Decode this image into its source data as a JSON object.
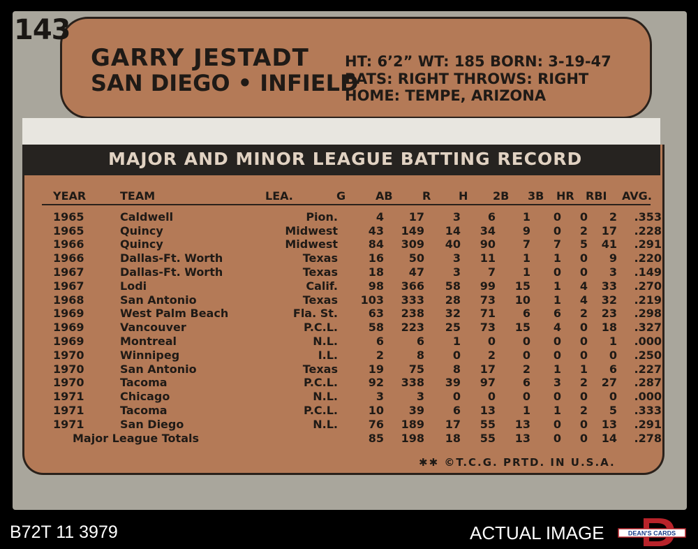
{
  "card": {
    "number": "143",
    "player_name": "GARRY JESTADT",
    "team_position": "SAN DIEGO • INFIELD",
    "bio": {
      "line1": "HT: 6’2”   WT: 185  BORN: 3-19-47",
      "line2": "BATS: RIGHT        THROWS: RIGHT",
      "line3": "HOME: TEMPE, ARIZONA"
    },
    "record_title": "MAJOR AND MINOR LEAGUE BATTING RECORD",
    "columns": [
      "YEAR",
      "TEAM",
      "LEA.",
      "G",
      "AB",
      "R",
      "H",
      "2B",
      "3B",
      "HR",
      "RBI",
      "AVG."
    ],
    "rows": [
      [
        "1965",
        "Caldwell",
        "Pion.",
        "4",
        "17",
        "3",
        "6",
        "1",
        "0",
        "0",
        "2",
        ".353"
      ],
      [
        "1965",
        "Quincy",
        "Midwest",
        "43",
        "149",
        "14",
        "34",
        "9",
        "0",
        "2",
        "17",
        ".228"
      ],
      [
        "1966",
        "Quincy",
        "Midwest",
        "84",
        "309",
        "40",
        "90",
        "7",
        "7",
        "5",
        "41",
        ".291"
      ],
      [
        "1966",
        "Dallas-Ft. Worth",
        "Texas",
        "16",
        "50",
        "3",
        "11",
        "1",
        "1",
        "0",
        "9",
        ".220"
      ],
      [
        "1967",
        "Dallas-Ft. Worth",
        "Texas",
        "18",
        "47",
        "3",
        "7",
        "1",
        "0",
        "0",
        "3",
        ".149"
      ],
      [
        "1967",
        "Lodi",
        "Calif.",
        "98",
        "366",
        "58",
        "99",
        "15",
        "1",
        "4",
        "33",
        ".270"
      ],
      [
        "1968",
        "San Antonio",
        "Texas",
        "103",
        "333",
        "28",
        "73",
        "10",
        "1",
        "4",
        "32",
        ".219"
      ],
      [
        "1969",
        "West Palm Beach",
        "Fla. St.",
        "63",
        "238",
        "32",
        "71",
        "6",
        "6",
        "2",
        "23",
        ".298"
      ],
      [
        "1969",
        "Vancouver",
        "P.C.L.",
        "58",
        "223",
        "25",
        "73",
        "15",
        "4",
        "0",
        "18",
        ".327"
      ],
      [
        "1969",
        "Montreal",
        "N.L.",
        "6",
        "6",
        "1",
        "0",
        "0",
        "0",
        "0",
        "1",
        ".000"
      ],
      [
        "1970",
        "Winnipeg",
        "I.L.",
        "2",
        "8",
        "0",
        "2",
        "0",
        "0",
        "0",
        "0",
        ".250"
      ],
      [
        "1970",
        "San Antonio",
        "Texas",
        "19",
        "75",
        "8",
        "17",
        "2",
        "1",
        "1",
        "6",
        ".227"
      ],
      [
        "1970",
        "Tacoma",
        "P.C.L.",
        "92",
        "338",
        "39",
        "97",
        "6",
        "3",
        "2",
        "27",
        ".287"
      ],
      [
        "1971",
        "Chicago",
        "N.L.",
        "3",
        "3",
        "0",
        "0",
        "0",
        "0",
        "0",
        "0",
        ".000"
      ],
      [
        "1971",
        "Tacoma",
        "P.C.L.",
        "10",
        "39",
        "6",
        "13",
        "1",
        "1",
        "2",
        "5",
        ".333"
      ],
      [
        "1971",
        "San Diego",
        "N.L.",
        "76",
        "189",
        "17",
        "55",
        "13",
        "0",
        "0",
        "13",
        ".291"
      ]
    ],
    "totals_label": "Major League Totals",
    "totals": [
      "85",
      "198",
      "18",
      "55",
      "13",
      "0",
      "0",
      "14",
      ".278"
    ],
    "copyright": "✱✱ ©T.C.G. PRTD. IN U.S.A."
  },
  "overlay": {
    "sku": "B72T 11 3979",
    "actual_image": "ACTUAL IMAGE",
    "logo_text": "DEAN'S CARDS"
  },
  "colors": {
    "card_bg": "#a9a69c",
    "panel": "#b47a57",
    "ink": "#1f1a16",
    "title_bar": "#262320"
  }
}
